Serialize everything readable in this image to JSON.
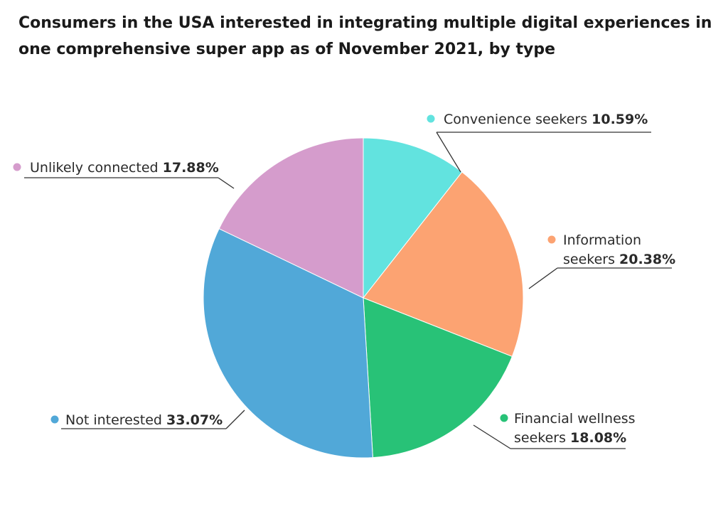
{
  "chart_data": {
    "type": "pie",
    "title": "Consumers in the USA interested in integrating multiple digital experiences in one comprehensive super app as of November 2021, by type",
    "slices": [
      {
        "label": "Convenience seekers",
        "lines": [
          "Convenience seekers"
        ],
        "value": 10.59,
        "value_label": "10.59%",
        "color": "#62e3df"
      },
      {
        "label": "Information seekers",
        "lines": [
          "Information",
          "seekers"
        ],
        "value": 20.38,
        "value_label": "20.38%",
        "color": "#fca372"
      },
      {
        "label": "Financial wellness seekers",
        "lines": [
          "Financial wellness",
          "seekers"
        ],
        "value": 18.08,
        "value_label": "18.08%",
        "color": "#28c277"
      },
      {
        "label": "Not interested",
        "lines": [
          "Not interested"
        ],
        "value": 33.07,
        "value_label": "33.07%",
        "color": "#51a8d8"
      },
      {
        "label": "Unlikely connected",
        "lines": [
          "Unlikely connected"
        ],
        "value": 17.88,
        "value_label": "17.88%",
        "color": "#d59ccc"
      }
    ]
  }
}
